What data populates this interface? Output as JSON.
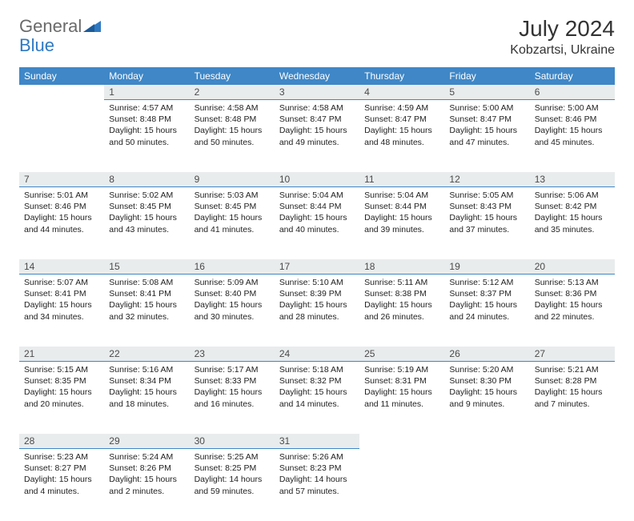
{
  "brand": {
    "general": "General",
    "blue": "Blue"
  },
  "header": {
    "title": "July 2024",
    "location": "Kobzartsi, Ukraine"
  },
  "colors": {
    "header_bg": "#3f87c7",
    "header_text": "#ffffff",
    "daynum_bg": "#e9eced",
    "daynum_text": "#4a4a4a",
    "cell_text": "#222222",
    "divider": "#3f87c7",
    "logo_gray": "#6a6a6a",
    "logo_blue": "#2f79c2"
  },
  "columns": [
    "Sunday",
    "Monday",
    "Tuesday",
    "Wednesday",
    "Thursday",
    "Friday",
    "Saturday"
  ],
  "weeks": [
    [
      null,
      {
        "n": "1",
        "sr": "4:57 AM",
        "ss": "8:48 PM",
        "dl": "15 hours and 50 minutes."
      },
      {
        "n": "2",
        "sr": "4:58 AM",
        "ss": "8:48 PM",
        "dl": "15 hours and 50 minutes."
      },
      {
        "n": "3",
        "sr": "4:58 AM",
        "ss": "8:47 PM",
        "dl": "15 hours and 49 minutes."
      },
      {
        "n": "4",
        "sr": "4:59 AM",
        "ss": "8:47 PM",
        "dl": "15 hours and 48 minutes."
      },
      {
        "n": "5",
        "sr": "5:00 AM",
        "ss": "8:47 PM",
        "dl": "15 hours and 47 minutes."
      },
      {
        "n": "6",
        "sr": "5:00 AM",
        "ss": "8:46 PM",
        "dl": "15 hours and 45 minutes."
      }
    ],
    [
      {
        "n": "7",
        "sr": "5:01 AM",
        "ss": "8:46 PM",
        "dl": "15 hours and 44 minutes."
      },
      {
        "n": "8",
        "sr": "5:02 AM",
        "ss": "8:45 PM",
        "dl": "15 hours and 43 minutes."
      },
      {
        "n": "9",
        "sr": "5:03 AM",
        "ss": "8:45 PM",
        "dl": "15 hours and 41 minutes."
      },
      {
        "n": "10",
        "sr": "5:04 AM",
        "ss": "8:44 PM",
        "dl": "15 hours and 40 minutes."
      },
      {
        "n": "11",
        "sr": "5:04 AM",
        "ss": "8:44 PM",
        "dl": "15 hours and 39 minutes."
      },
      {
        "n": "12",
        "sr": "5:05 AM",
        "ss": "8:43 PM",
        "dl": "15 hours and 37 minutes."
      },
      {
        "n": "13",
        "sr": "5:06 AM",
        "ss": "8:42 PM",
        "dl": "15 hours and 35 minutes."
      }
    ],
    [
      {
        "n": "14",
        "sr": "5:07 AM",
        "ss": "8:41 PM",
        "dl": "15 hours and 34 minutes."
      },
      {
        "n": "15",
        "sr": "5:08 AM",
        "ss": "8:41 PM",
        "dl": "15 hours and 32 minutes."
      },
      {
        "n": "16",
        "sr": "5:09 AM",
        "ss": "8:40 PM",
        "dl": "15 hours and 30 minutes."
      },
      {
        "n": "17",
        "sr": "5:10 AM",
        "ss": "8:39 PM",
        "dl": "15 hours and 28 minutes."
      },
      {
        "n": "18",
        "sr": "5:11 AM",
        "ss": "8:38 PM",
        "dl": "15 hours and 26 minutes."
      },
      {
        "n": "19",
        "sr": "5:12 AM",
        "ss": "8:37 PM",
        "dl": "15 hours and 24 minutes."
      },
      {
        "n": "20",
        "sr": "5:13 AM",
        "ss": "8:36 PM",
        "dl": "15 hours and 22 minutes."
      }
    ],
    [
      {
        "n": "21",
        "sr": "5:15 AM",
        "ss": "8:35 PM",
        "dl": "15 hours and 20 minutes."
      },
      {
        "n": "22",
        "sr": "5:16 AM",
        "ss": "8:34 PM",
        "dl": "15 hours and 18 minutes."
      },
      {
        "n": "23",
        "sr": "5:17 AM",
        "ss": "8:33 PM",
        "dl": "15 hours and 16 minutes."
      },
      {
        "n": "24",
        "sr": "5:18 AM",
        "ss": "8:32 PM",
        "dl": "15 hours and 14 minutes."
      },
      {
        "n": "25",
        "sr": "5:19 AM",
        "ss": "8:31 PM",
        "dl": "15 hours and 11 minutes."
      },
      {
        "n": "26",
        "sr": "5:20 AM",
        "ss": "8:30 PM",
        "dl": "15 hours and 9 minutes."
      },
      {
        "n": "27",
        "sr": "5:21 AM",
        "ss": "8:28 PM",
        "dl": "15 hours and 7 minutes."
      }
    ],
    [
      {
        "n": "28",
        "sr": "5:23 AM",
        "ss": "8:27 PM",
        "dl": "15 hours and 4 minutes."
      },
      {
        "n": "29",
        "sr": "5:24 AM",
        "ss": "8:26 PM",
        "dl": "15 hours and 2 minutes."
      },
      {
        "n": "30",
        "sr": "5:25 AM",
        "ss": "8:25 PM",
        "dl": "14 hours and 59 minutes."
      },
      {
        "n": "31",
        "sr": "5:26 AM",
        "ss": "8:23 PM",
        "dl": "14 hours and 57 minutes."
      },
      null,
      null,
      null
    ]
  ],
  "labels": {
    "sunrise": "Sunrise:",
    "sunset": "Sunset:",
    "daylight": "Daylight:"
  }
}
